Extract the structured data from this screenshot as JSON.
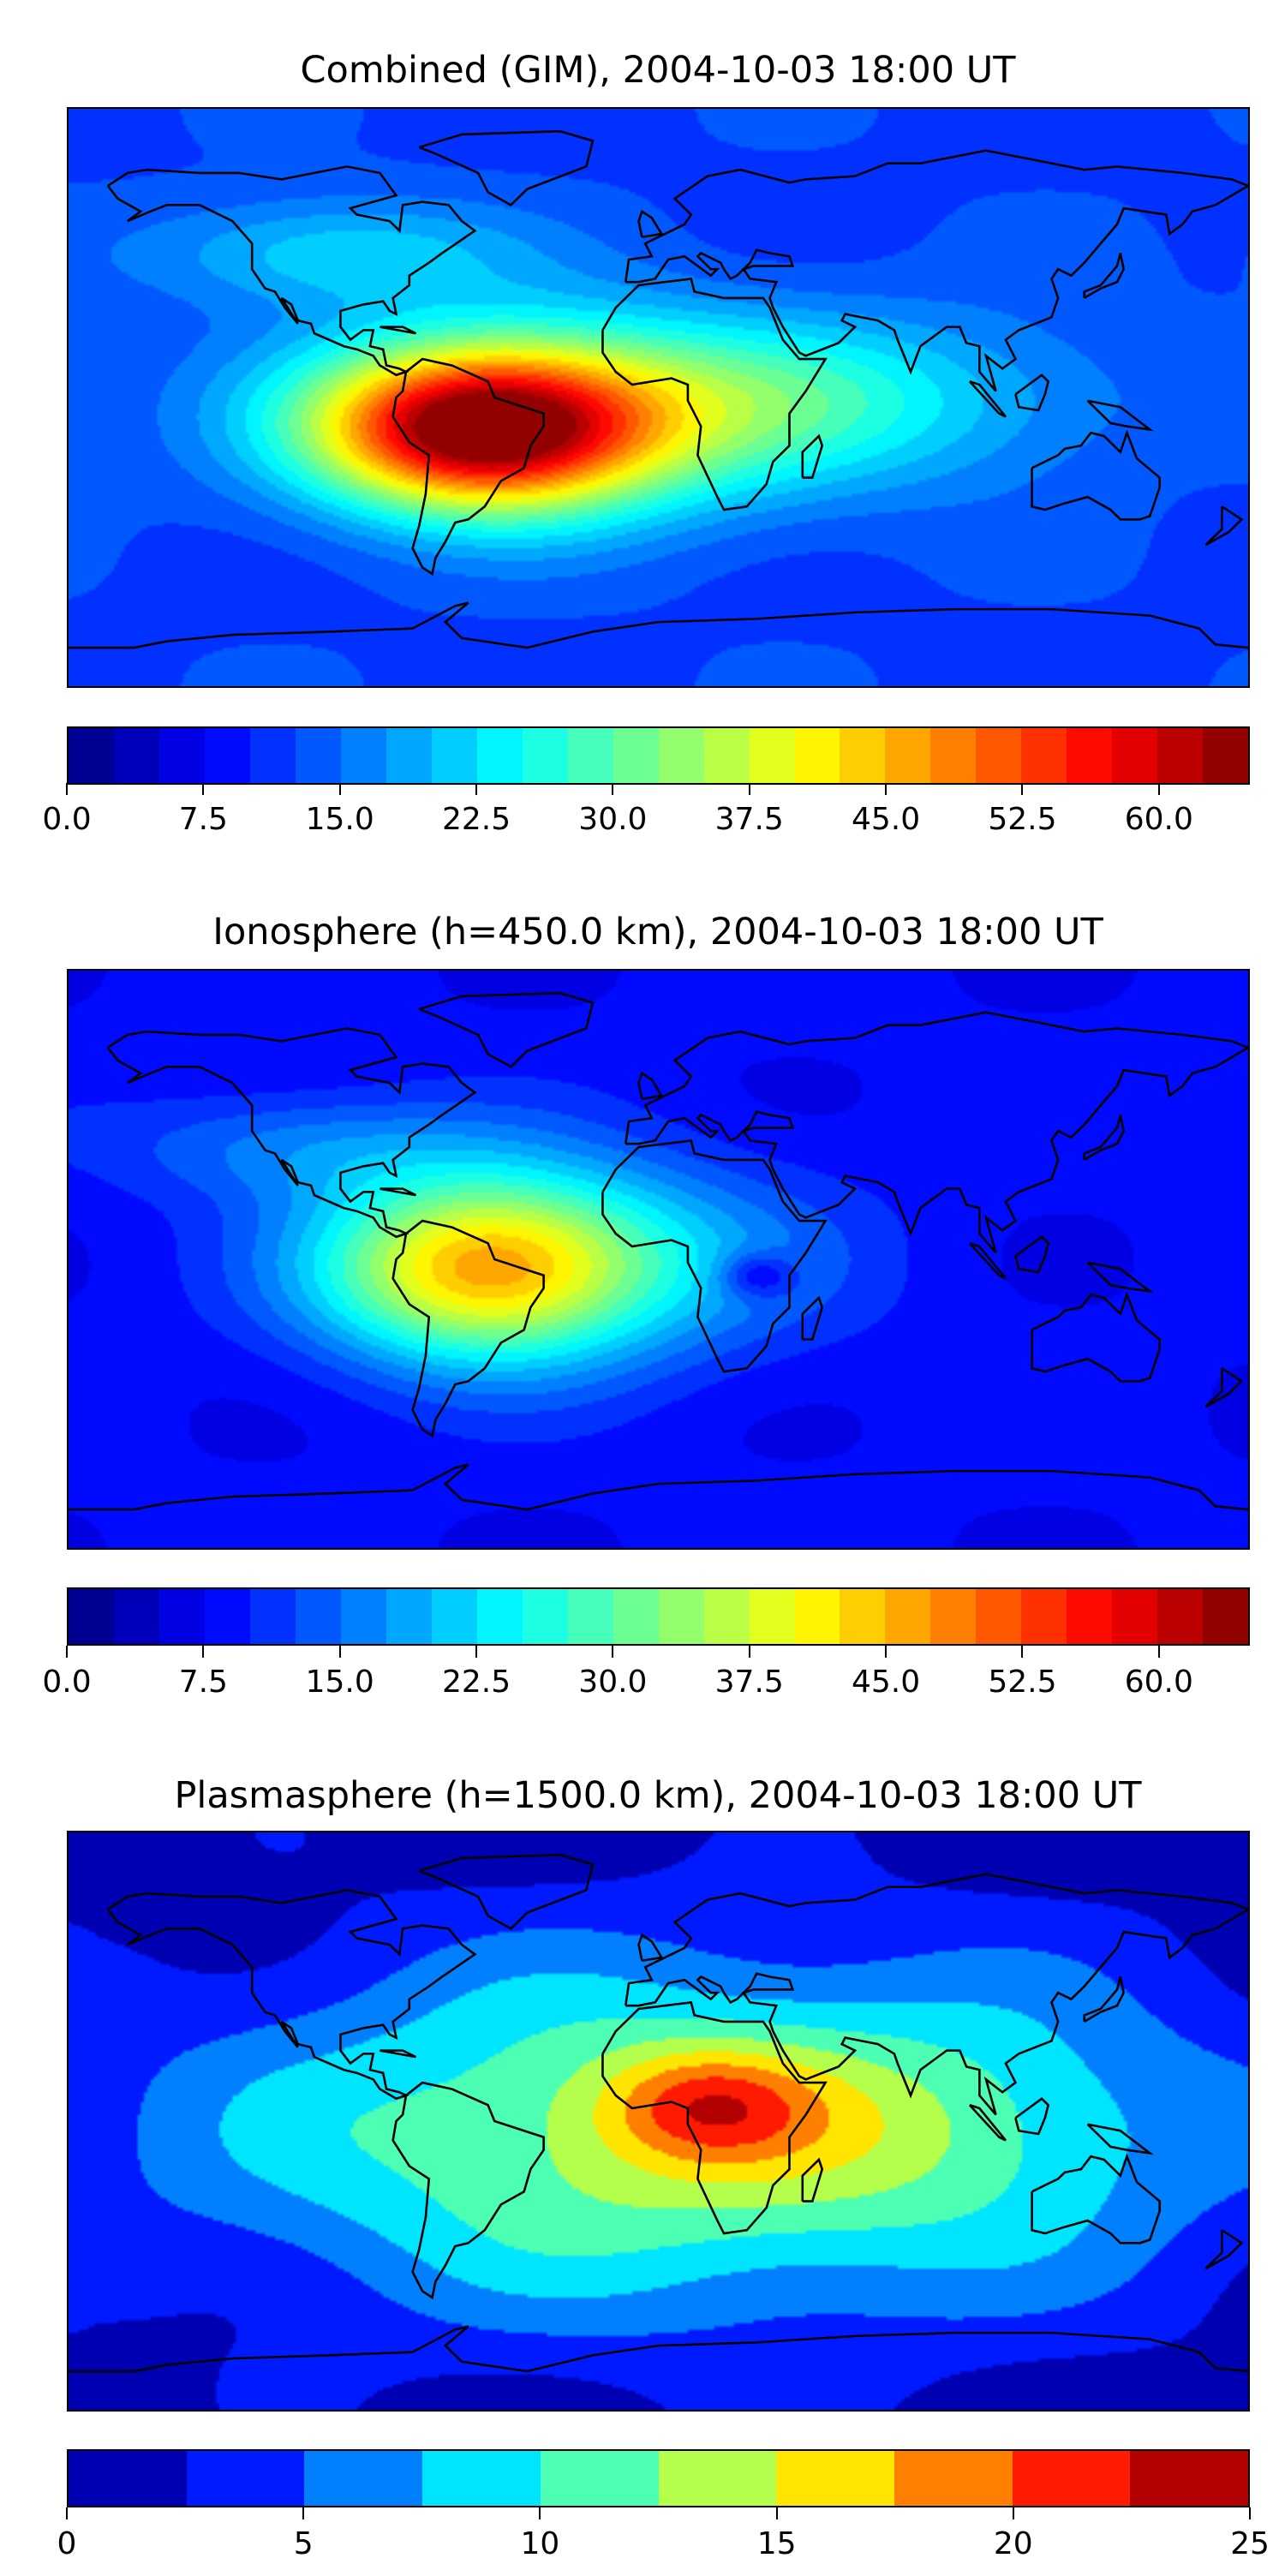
{
  "chart_data": [
    {
      "type": "heatmap",
      "subtype": "filled-contour-map",
      "title": "Combined (GIM), 2004-10-03 18:00 UT",
      "projection": "plate carree",
      "xlim": [
        -180,
        180
      ],
      "ylim": [
        -90,
        90
      ],
      "colormap": "jet",
      "colorbar": {
        "min": 0,
        "max": 65,
        "step": 2.5,
        "ticks": [
          "0.0",
          "7.5",
          "15.0",
          "22.5",
          "30.0",
          "37.5",
          "45.0",
          "52.5",
          "60.0"
        ],
        "tick_values": [
          0,
          7.5,
          15,
          22.5,
          30,
          37.5,
          45,
          52.5,
          60
        ]
      },
      "approx_field": {
        "base": 12,
        "features": [
          {
            "lon": -55,
            "lat": -10,
            "amp": 45,
            "slon": 35,
            "slat": 17
          },
          {
            "lon": -20,
            "lat": -5,
            "amp": 18,
            "slon": 60,
            "slat": 22
          },
          {
            "lon": 60,
            "lat": 0,
            "amp": 8,
            "slon": 60,
            "slat": 18
          },
          {
            "lon": -100,
            "lat": 45,
            "amp": 10,
            "slon": 40,
            "slat": 12
          }
        ]
      }
    },
    {
      "type": "heatmap",
      "subtype": "filled-contour-map",
      "title": "Ionosphere  (h=450.0 km), 2004-10-03 18:00 UT",
      "projection": "plate carree",
      "xlim": [
        -180,
        180
      ],
      "ylim": [
        -90,
        90
      ],
      "colormap": "jet",
      "colorbar": {
        "min": 0,
        "max": 65,
        "step": 2.5,
        "ticks": [
          "0.0",
          "7.5",
          "15.0",
          "22.5",
          "30.0",
          "37.5",
          "45.0",
          "52.5",
          "60.0"
        ],
        "tick_values": [
          0,
          7.5,
          15,
          22.5,
          30,
          37.5,
          45,
          52.5,
          60
        ]
      },
      "approx_field": {
        "base": 8,
        "features": [
          {
            "lon": -55,
            "lat": -3,
            "amp": 30,
            "slon": 35,
            "slat": 20
          },
          {
            "lon": -20,
            "lat": 0,
            "amp": 12,
            "slon": 50,
            "slat": 22
          },
          {
            "lon": 30,
            "lat": -5,
            "amp": -9,
            "slon": 8,
            "slat": 5
          },
          {
            "lon": -110,
            "lat": 35,
            "amp": 8,
            "slon": 40,
            "slat": 12
          }
        ]
      }
    },
    {
      "type": "heatmap",
      "subtype": "filled-contour-map",
      "title": "Plasmasphere (h=1500.0 km), 2004-10-03 18:00 UT",
      "projection": "plate carree",
      "xlim": [
        -180,
        180
      ],
      "ylim": [
        -90,
        90
      ],
      "colormap": "jet",
      "colorbar": {
        "min": 0,
        "max": 25,
        "step": 2.5,
        "ticks": [
          "0",
          "5",
          "10",
          "15",
          "20",
          "25"
        ],
        "tick_values": [
          0,
          5,
          10,
          15,
          20,
          25
        ]
      },
      "approx_field": {
        "base": 1,
        "features": [
          {
            "lon": 10,
            "lat": -5,
            "amp": 13,
            "slon": 110,
            "slat": 40
          },
          {
            "lon": 15,
            "lat": 5,
            "amp": 8,
            "slon": 22,
            "slat": 12
          },
          {
            "lon": 80,
            "lat": 0,
            "amp": 2,
            "slon": 50,
            "slat": 20
          }
        ]
      }
    }
  ]
}
